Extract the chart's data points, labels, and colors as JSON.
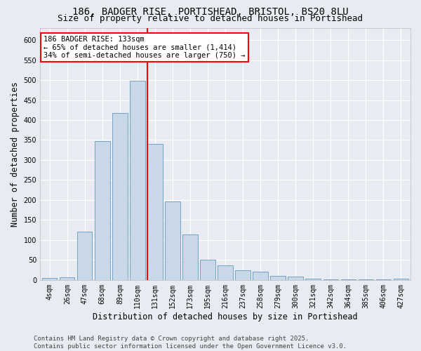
{
  "title_line1": "186, BADGER RISE, PORTISHEAD, BRISTOL, BS20 8LU",
  "title_line2": "Size of property relative to detached houses in Portishead",
  "xlabel": "Distribution of detached houses by size in Portishead",
  "ylabel": "Number of detached properties",
  "bar_color": "#c8d8e8",
  "bar_edge_color": "#6699bb",
  "background_color": "#e8ecf2",
  "grid_color": "#ffffff",
  "categories": [
    "4sqm",
    "26sqm",
    "47sqm",
    "68sqm",
    "89sqm",
    "110sqm",
    "131sqm",
    "152sqm",
    "173sqm",
    "195sqm",
    "216sqm",
    "237sqm",
    "258sqm",
    "279sqm",
    "300sqm",
    "321sqm",
    "342sqm",
    "364sqm",
    "385sqm",
    "406sqm",
    "427sqm"
  ],
  "values": [
    5,
    6,
    120,
    348,
    418,
    498,
    340,
    197,
    113,
    50,
    36,
    25,
    20,
    10,
    8,
    4,
    2,
    2,
    1,
    1,
    4
  ],
  "red_line_index": 6,
  "red_line_label": "186 BADGER RISE: 133sqm",
  "annotation_line2": "← 65% of detached houses are smaller (1,414)",
  "annotation_line3": "34% of semi-detached houses are larger (750) →",
  "ylim": [
    0,
    630
  ],
  "yticks": [
    0,
    50,
    100,
    150,
    200,
    250,
    300,
    350,
    400,
    450,
    500,
    550,
    600
  ],
  "footer_line1": "Contains HM Land Registry data © Crown copyright and database right 2025.",
  "footer_line2": "Contains public sector information licensed under the Open Government Licence v3.0.",
  "title_fontsize": 10,
  "subtitle_fontsize": 9,
  "axis_label_fontsize": 8.5,
  "tick_fontsize": 7,
  "annotation_fontsize": 7.5,
  "footer_fontsize": 6.5
}
